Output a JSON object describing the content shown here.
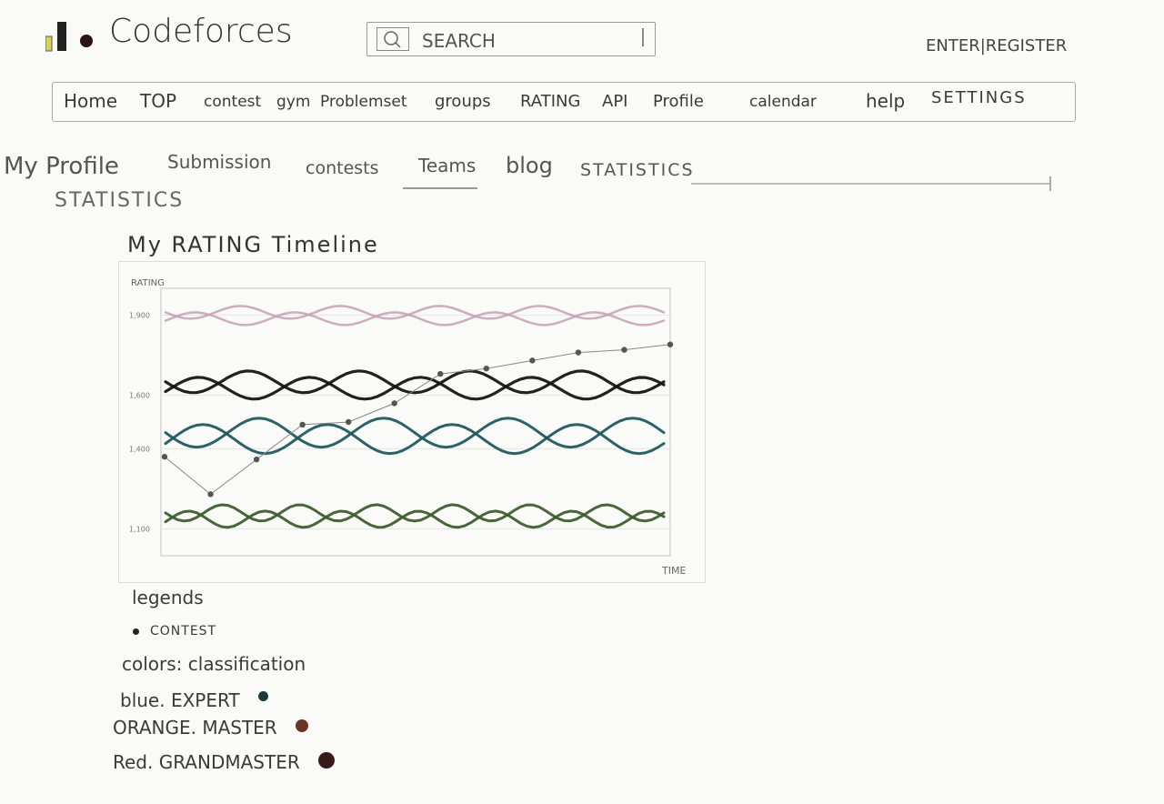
{
  "header": {
    "logo_text": "Codeforces",
    "search": {
      "placeholder": "SEARCH"
    },
    "auth_link": "ENTER|REGISTER"
  },
  "main_nav": [
    "Home",
    "TOP",
    "contest",
    "gym",
    "Problemset",
    "groups",
    "RATING",
    "API",
    "Profile",
    "calendar",
    "help",
    "SETTINGS"
  ],
  "sub_nav": [
    "My Profile",
    "Submission",
    "contests",
    "Teams",
    "blog",
    "STATISTICS"
  ],
  "active_sub_tab": "Teams",
  "section_title": "STATISTICS",
  "chart_data": {
    "type": "line",
    "title": "My RATING Timeline",
    "ylabel": "RATING",
    "xlabel": "TIME",
    "y_ticks": [
      "1,900",
      "1,600",
      "1,400",
      "1,100"
    ],
    "grid": true,
    "series": [
      {
        "name": "contest",
        "color": "#555555",
        "style": "points",
        "x": [
          1,
          2,
          3,
          4,
          5,
          6,
          7,
          8,
          9,
          10,
          11,
          12
        ],
        "values": [
          1370,
          1230,
          1360,
          1490,
          1500,
          1570,
          1680,
          1700,
          1730,
          1760,
          1770,
          1790
        ]
      }
    ],
    "bands": [
      {
        "color": "#c4a0b4",
        "level": 1900
      },
      {
        "color": "#151515",
        "level": 1640
      },
      {
        "color": "#1f5a5e",
        "level": 1450
      },
      {
        "color": "#3d5e2f",
        "level": 1150
      }
    ]
  },
  "legend": {
    "heading": "legends",
    "contest_label": "CONTEST",
    "colors_label": "colors: classification",
    "entries": [
      {
        "text": "blue. EXPERT",
        "color": "#1d3a3a"
      },
      {
        "text": "ORANGE. MASTER",
        "color": "#6b3424"
      },
      {
        "text": "Red. GRANDMASTER",
        "color": "#3a1a1a"
      }
    ]
  }
}
